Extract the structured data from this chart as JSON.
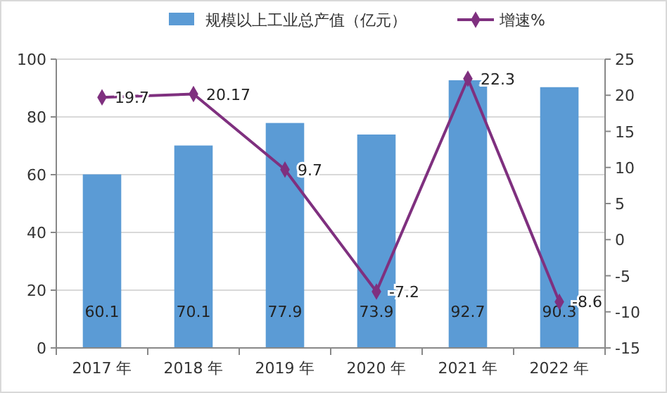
{
  "chart_data": {
    "type": "bar",
    "categories": [
      "2017 年",
      "2018 年",
      "2019 年",
      "2020 年",
      "2021 年",
      "2022 年"
    ],
    "series": [
      {
        "name": "规模以上工业总产值（亿元）",
        "color": "#5b9bd5",
        "values": [
          60.1,
          70.1,
          77.9,
          73.9,
          92.7,
          90.3
        ]
      },
      {
        "name": "增速%",
        "type": "line",
        "axis": "y2",
        "color": "#7f307f",
        "values": [
          19.7,
          20.17,
          9.7,
          -7.2,
          22.3,
          -8.6
        ]
      }
    ],
    "ylim": [
      0,
      100
    ],
    "yticks": [
      0,
      20,
      40,
      60,
      80,
      100
    ],
    "y2lim": [
      -15,
      25
    ],
    "y2ticks": [
      -15,
      -10,
      -5,
      0,
      5,
      10,
      15,
      20,
      25
    ],
    "grid": "y",
    "legend": "top",
    "marker": "diamond",
    "data_labels": true
  }
}
